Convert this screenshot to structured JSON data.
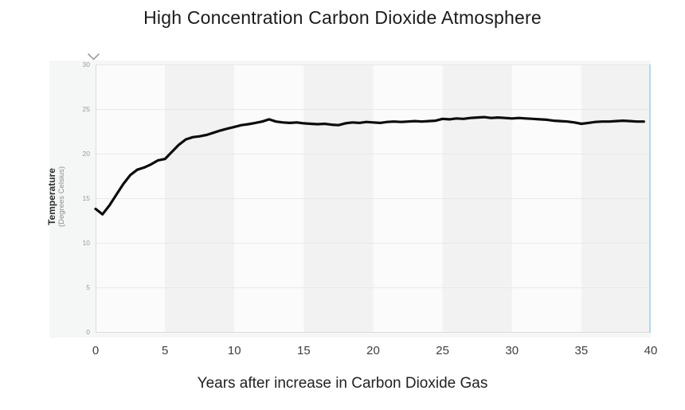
{
  "chart_data": {
    "type": "line",
    "title": "High Concentration Carbon Dioxide Atmosphere",
    "xlabel": "Years after increase in Carbon Dioxide Gas",
    "ylabel": "Temperature",
    "ylabel_sub": "(Degrees Celsius)",
    "xlim": [
      0,
      40
    ],
    "ylim": [
      0,
      30
    ],
    "x_ticks": [
      0,
      5,
      10,
      15,
      20,
      25,
      30,
      35,
      40
    ],
    "y_ticks": [
      0,
      5,
      10,
      15,
      20,
      25,
      30
    ],
    "grid": "horizontal",
    "legend": "none",
    "background_bands": {
      "interval": 5,
      "colors": [
        "#fbfbfb",
        "#f2f2f2"
      ]
    },
    "x": [
      0,
      0.5,
      1,
      1.5,
      2,
      2.5,
      3,
      3.5,
      4,
      4.5,
      5,
      5.5,
      6,
      6.5,
      7,
      7.5,
      8,
      8.5,
      9,
      9.5,
      10,
      10.5,
      11,
      11.5,
      12,
      12.5,
      13,
      13.5,
      14,
      14.5,
      15,
      15.5,
      16,
      16.5,
      17,
      17.5,
      18,
      18.5,
      19,
      19.5,
      20,
      20.5,
      21,
      21.5,
      22,
      22.5,
      23,
      23.5,
      24,
      24.5,
      25,
      25.5,
      26,
      26.5,
      27,
      27.5,
      28,
      28.5,
      29,
      29.5,
      30,
      30.5,
      31,
      31.5,
      32,
      32.5,
      33,
      33.5,
      34,
      34.5,
      35,
      35.5,
      36,
      36.5,
      37,
      37.5,
      38,
      38.5,
      39,
      39.5
    ],
    "values": [
      13.8,
      13.2,
      14.2,
      15.4,
      16.6,
      17.6,
      18.2,
      18.45,
      18.8,
      19.25,
      19.4,
      20.2,
      21.0,
      21.6,
      21.85,
      21.95,
      22.1,
      22.35,
      22.6,
      22.8,
      23.0,
      23.2,
      23.3,
      23.45,
      23.6,
      23.85,
      23.6,
      23.5,
      23.45,
      23.5,
      23.4,
      23.35,
      23.3,
      23.35,
      23.25,
      23.2,
      23.4,
      23.5,
      23.45,
      23.55,
      23.5,
      23.45,
      23.55,
      23.6,
      23.55,
      23.6,
      23.65,
      23.6,
      23.65,
      23.7,
      23.9,
      23.85,
      23.95,
      23.9,
      24.0,
      24.05,
      24.1,
      24.0,
      24.05,
      24.0,
      23.95,
      24.0,
      23.95,
      23.9,
      23.85,
      23.8,
      23.7,
      23.65,
      23.6,
      23.5,
      23.35,
      23.45,
      23.55,
      23.6,
      23.6,
      23.65,
      23.7,
      23.65,
      23.6,
      23.6
    ],
    "line_color": "#0c0c0c",
    "accent_colors": {
      "panel": "#f5f6f6",
      "gridline": "#e8e8e8",
      "axis_line": "#dcdcdc",
      "plot_right_border": "#b3d7f0",
      "chevron": "#9e9e9e",
      "y_tick_label": "#9a9a9a",
      "x_tick_label": "#404040"
    }
  }
}
